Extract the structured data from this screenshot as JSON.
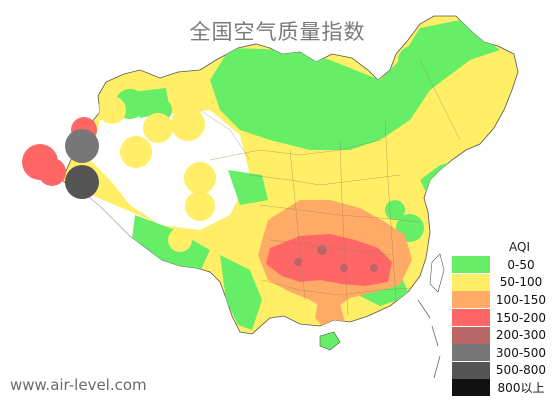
{
  "map": {
    "title": "全国空气质量指数",
    "watermark": "www.air-level.com"
  },
  "legend": {
    "title": "AQI",
    "items": [
      {
        "label": "0-50",
        "color": "#66ee66"
      },
      {
        "label": "50-100",
        "color": "#ffee66"
      },
      {
        "label": "100-150",
        "color": "#ffaa66"
      },
      {
        "label": "150-200",
        "color": "#ff6666"
      },
      {
        "label": "200-300",
        "color": "#bb6666"
      },
      {
        "label": "300-500",
        "color": "#777777"
      },
      {
        "label": "500-800",
        "color": "#555555"
      },
      {
        "label": "800以上",
        "color": "#111111"
      }
    ]
  },
  "colors": {
    "base": "#ffee66",
    "good": "#66ee66",
    "moderate": "#ffaa66",
    "unhealthy": "#ff6666",
    "very_unhealthy": "#bb6666",
    "hazardous": "#777777",
    "severe": "#555555",
    "border": "#555555"
  }
}
